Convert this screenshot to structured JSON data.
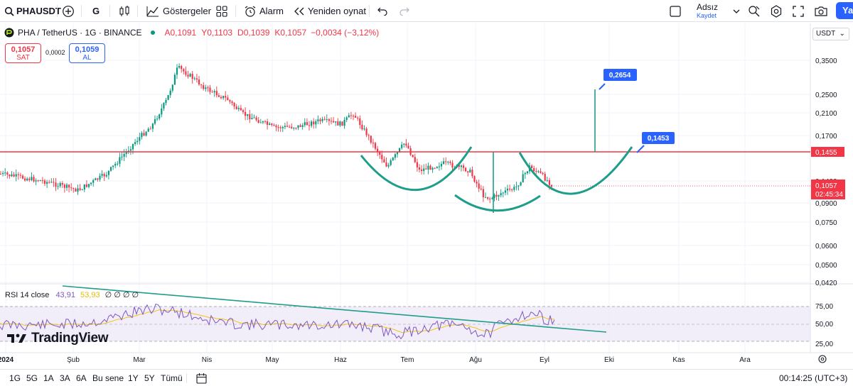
{
  "toolbar": {
    "symbol": "PHAUSDT",
    "interval": "G",
    "indicators_label": "Göstergeler",
    "alert_label": "Alarm",
    "replay_label": "Yeniden oynat",
    "layout_name": "Adsız",
    "save_label": "Kaydet",
    "publish_label": "Yay"
  },
  "legend": {
    "title": "PHA / TetherUS · 1G · BINANCE",
    "open": "A0,1091",
    "high": "Y0,1103",
    "low": "D0,1039",
    "close": "K0,1057",
    "change": "−0,0034 (−3,12%)"
  },
  "trade": {
    "sell_price": "0,1057",
    "sell_label": "SAT",
    "spread": "0,0002",
    "buy_price": "0,1059",
    "buy_label": "AL"
  },
  "price_axis": {
    "currency": "USDT",
    "ticks": [
      "0,3500",
      "0,2500",
      "0,2100",
      "0,1700",
      "0,1400",
      "0,0900",
      "0,0750",
      "0,0600",
      "0,0500",
      "0,0420"
    ],
    "resistance_label": "0,1455",
    "last_price": "0,1057",
    "countdown": "02:45:34"
  },
  "annotations": {
    "target_label": "0,2654",
    "breakout_label": "0,1453"
  },
  "rsi": {
    "label": "RSI 14 close",
    "value": "43,91",
    "ma_value": "53,93",
    "extra": "∅ ∅ ∅ ∅",
    "ticks": [
      "75,00",
      "50,00",
      "25,00"
    ]
  },
  "time_axis": [
    "2024",
    "Şub",
    "Mar",
    "Nis",
    "May",
    "Haz",
    "Tem",
    "Ağu",
    "Eyl",
    "Eki",
    "Kas",
    "Ara"
  ],
  "brand": "TradingView",
  "bottom": {
    "ranges": [
      "1G",
      "5G",
      "1A",
      "3A",
      "6A",
      "Bu sene",
      "1Y",
      "5Y",
      "Tümü"
    ],
    "clock": "00:14:25 (UTC+3)"
  },
  "colors": {
    "up": "#089981",
    "down": "#f23645",
    "pattern": "#26a69a",
    "accent": "#2962ff",
    "rsi": "#7e57c2",
    "rsi_ma": "#f0c419"
  }
}
